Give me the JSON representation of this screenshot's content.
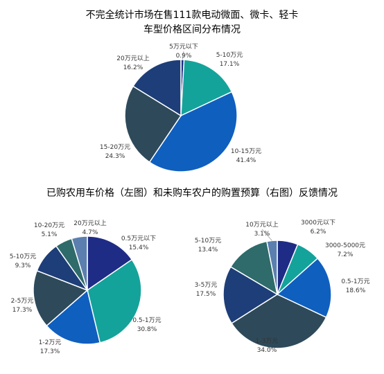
{
  "chart_data": [
    {
      "type": "pie",
      "title": "不完全统计市场在售111款电动微面、微卡、轻卡",
      "subtitle": "车型价格区间分布情况",
      "slices": [
        {
          "label": "5万元以下",
          "pct": "0.9%",
          "value": 0.9,
          "color": "#1f2c86"
        },
        {
          "label": "5-10万元",
          "pct": "17.1%",
          "value": 17.1,
          "color": "#14a39a"
        },
        {
          "label": "10-15万元",
          "pct": "41.4%",
          "value": 41.4,
          "color": "#0f5fbf"
        },
        {
          "label": "15-20万元",
          "pct": "24.3%",
          "value": 24.3,
          "color": "#2e4a5a"
        },
        {
          "label": "20万元以上",
          "pct": "16.2%",
          "value": 16.2,
          "color": "#1d3e78"
        }
      ]
    },
    {
      "type": "pie",
      "title": "已购农用车价格（左图）和未购车农户的购置预算（右图）反馈情况",
      "slices": [
        {
          "label": "0.5万元以下",
          "pct": "15.4%",
          "value": 15.4,
          "color": "#1f2c86"
        },
        {
          "label": "0.5-1万元",
          "pct": "30.8%",
          "value": 30.8,
          "color": "#14a39a"
        },
        {
          "label": "1-2万元",
          "pct": "17.3%",
          "value": 17.3,
          "color": "#0f5fbf"
        },
        {
          "label": "2-5万元",
          "pct": "17.3%",
          "value": 17.3,
          "color": "#2e4a5a"
        },
        {
          "label": "5-10万元",
          "pct": "9.3%",
          "value": 9.3,
          "color": "#1d3e78"
        },
        {
          "label": "10-20万元",
          "pct": "5.1%",
          "value": 5.1,
          "color": "#2e6b6a"
        },
        {
          "label": "20万元以上",
          "pct": "4.7%",
          "value": 4.7,
          "color": "#5b7fae"
        }
      ]
    },
    {
      "type": "pie",
      "slices": [
        {
          "label": "3000元以下",
          "pct": "6.2%",
          "value": 6.2,
          "color": "#1f2c86"
        },
        {
          "label": "3000-5000元",
          "pct": "7.2%",
          "value": 7.2,
          "color": "#14a39a"
        },
        {
          "label": "0.5-1万元",
          "pct": "18.6%",
          "value": 18.6,
          "color": "#0f5fbf"
        },
        {
          "label": "1-3万元",
          "pct": "34.0%",
          "value": 34.0,
          "color": "#2e4a5a"
        },
        {
          "label": "3-5万元",
          "pct": "17.5%",
          "value": 17.5,
          "color": "#1d3e78"
        },
        {
          "label": "5-10万元",
          "pct": "13.4%",
          "value": 13.4,
          "color": "#2e6b6a"
        },
        {
          "label": "10万元以上",
          "pct": "3.1%",
          "value": 3.1,
          "color": "#5b7fae"
        }
      ]
    }
  ]
}
